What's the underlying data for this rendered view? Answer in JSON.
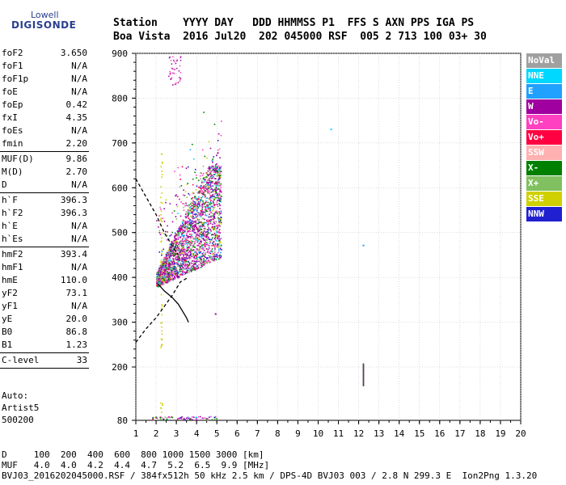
{
  "logo": {
    "top": "Lowell",
    "bottom": "DIGISONDE"
  },
  "header": {
    "line1": "Station    YYYY DAY   DDD HHMMSS P1  FFS S AXN PPS IGA PS",
    "line2": "Boa Vista  2016 Jul20  202 045000 RSF  005 2 713 100 03+ 30"
  },
  "params": [
    {
      "label": "foF2",
      "value": "3.650"
    },
    {
      "label": "foF1",
      "value": "N/A"
    },
    {
      "label": "foF1p",
      "value": "N/A"
    },
    {
      "label": "foE",
      "value": "N/A"
    },
    {
      "label": "foEp",
      "value": "0.42"
    },
    {
      "label": "fxI",
      "value": "4.35"
    },
    {
      "label": "foEs",
      "value": "N/A"
    },
    {
      "label": "fmin",
      "value": "2.20",
      "sep": true
    },
    {
      "label": "MUF(D)",
      "value": "9.86"
    },
    {
      "label": "M(D)",
      "value": "2.70"
    },
    {
      "label": "D",
      "value": "N/A",
      "sep": true
    },
    {
      "label": "h`F",
      "value": "396.3"
    },
    {
      "label": "h`F2",
      "value": "396.3"
    },
    {
      "label": "h`E",
      "value": "N/A"
    },
    {
      "label": "h`Es",
      "value": "N/A",
      "sep": true
    },
    {
      "label": "hmF2",
      "value": "393.4"
    },
    {
      "label": "hmF1",
      "value": "N/A"
    },
    {
      "label": "hmE",
      "value": "110.0"
    },
    {
      "label": "yF2",
      "value": "73.1"
    },
    {
      "label": "yF1",
      "value": "N/A"
    },
    {
      "label": "yE",
      "value": "20.0"
    },
    {
      "label": "B0",
      "value": "86.8"
    },
    {
      "label": "B1",
      "value": "1.23",
      "sep": true
    },
    {
      "label": "C-level",
      "value": "33",
      "sep": true
    }
  ],
  "auto": {
    "l1": "Auto:",
    "l2": "Artist5",
    "l3": "500200"
  },
  "legend": [
    {
      "label": "NoVal",
      "color": "#a0a0a0"
    },
    {
      "label": "NNE",
      "color": "#00d8ff"
    },
    {
      "label": "E",
      "color": "#20a0ff"
    },
    {
      "label": "W",
      "color": "#a000a0"
    },
    {
      "label": "Vo-",
      "color": "#ff40c0"
    },
    {
      "label": "Vo+",
      "color": "#ff0040"
    },
    {
      "label": "SSW",
      "color": "#ffb0b0"
    },
    {
      "label": "X-",
      "color": "#008000"
    },
    {
      "label": "X+",
      "color": "#80c060"
    },
    {
      "label": "SSE",
      "color": "#d0d000"
    },
    {
      "label": "NNW",
      "color": "#2020d0"
    }
  ],
  "footer": {
    "l1": "D     100  200  400  600  800 1000 1500 3000 [km]",
    "l2": "MUF   4.0  4.0  4.2  4.4  4.7  5.2  6.5  9.9 [MHz]",
    "l3": "BVJ03_2016202045000.RSF / 384fx512h 50 kHz 2.5 km / DPS-4D BVJ03 003 / 2.8 N 299.3 E  Ion2Png 1.3.20"
  },
  "chart_data": {
    "type": "scatter",
    "xlabel": "",
    "ylabel": "",
    "xlim": [
      1,
      20
    ],
    "ylim": [
      80,
      900
    ],
    "xticks": [
      1,
      2,
      3,
      4,
      5,
      6,
      7,
      8,
      9,
      10,
      11,
      12,
      13,
      14,
      15,
      16,
      17,
      18,
      19,
      20
    ],
    "yticks": [
      80,
      200,
      300,
      400,
      500,
      600,
      700,
      800,
      900
    ],
    "grid": true,
    "echo_cluster": {
      "fmin": 2.0,
      "fmax": 5.2,
      "hmin": 380,
      "hmax": 650
    },
    "isolated_points": [
      {
        "x": 10.6,
        "y": 732,
        "color": "NNE"
      },
      {
        "x": 12.2,
        "y": 473,
        "color": "E"
      },
      {
        "x": 12.2,
        "y": 180,
        "color": "W"
      },
      {
        "x": 4.9,
        "y": 320,
        "color": "W"
      }
    ],
    "sse_column": {
      "x": 2.2,
      "ymin": 240,
      "ymax": 700
    },
    "profile_solid": [
      [
        2.1,
        385
      ],
      [
        2.4,
        370
      ],
      [
        2.8,
        355
      ],
      [
        3.1,
        340
      ],
      [
        3.3,
        325
      ],
      [
        3.5,
        310
      ],
      [
        3.6,
        300
      ]
    ],
    "profile_dashed": [
      [
        1,
        255
      ],
      [
        1.5,
        285
      ],
      [
        2.0,
        310
      ],
      [
        2.4,
        335
      ],
      [
        2.8,
        360
      ],
      [
        3.2,
        390
      ],
      [
        3.6,
        400
      ]
    ],
    "profile_dashed_upper": [
      [
        1,
        620
      ],
      [
        1.5,
        580
      ],
      [
        2.0,
        540
      ],
      [
        2.4,
        500
      ],
      [
        2.8,
        470
      ],
      [
        3.1,
        450
      ]
    ]
  }
}
